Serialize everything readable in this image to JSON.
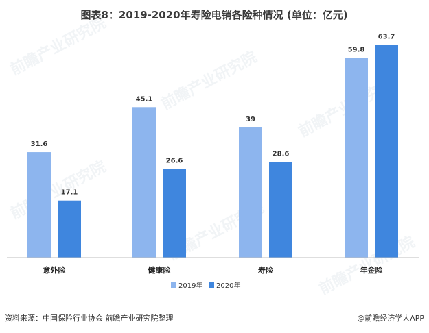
{
  "chart_data": {
    "type": "bar",
    "title": "图表8：2019-2020年寿险电销各险种情况 (单位：亿元)",
    "categories": [
      "意外险",
      "健康险",
      "寿险",
      "年金险"
    ],
    "series": [
      {
        "name": "2019年",
        "values": [
          31.6,
          45.1,
          39,
          59.8
        ],
        "labels": [
          "31.6",
          "45.1",
          "39",
          "59.8"
        ],
        "color": "#8db5ee"
      },
      {
        "name": "2020年",
        "values": [
          17.1,
          26.6,
          28.6,
          63.7
        ],
        "labels": [
          "17.1",
          "26.6",
          "28.6",
          "63.7"
        ],
        "color": "#3f86de"
      }
    ],
    "ylim": [
      0,
      70
    ],
    "xlabel": "",
    "ylabel": "",
    "grid": false,
    "legend_position": "bottom-center"
  },
  "footer": {
    "source": "资料来源：中国保险行业协会 前瞻产业研究院整理",
    "brand": "@前瞻经济学人APP"
  },
  "watermark": {
    "text": "前瞻产业研究院"
  },
  "colors": {
    "axis": "#bdbdbd",
    "text": "#333333"
  }
}
